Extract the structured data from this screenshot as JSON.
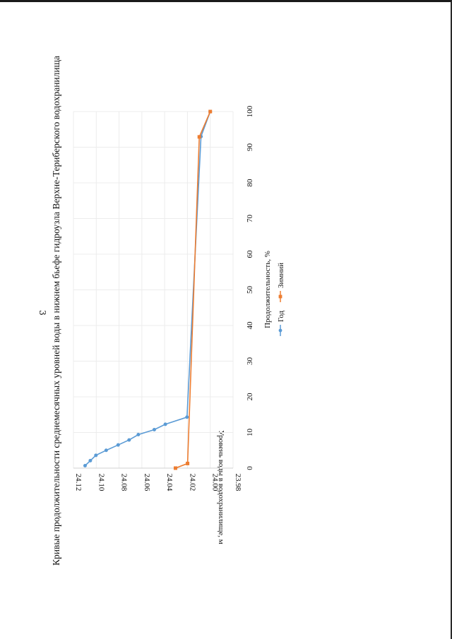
{
  "page": {
    "number": "3"
  },
  "chart_data": {
    "type": "line",
    "title": "Кривые продолжительности среднемесячных уровней воды в нижнем бьефе гидроузла Верхне-Териберского водохранилища",
    "xlabel": "Продолжительность, %",
    "ylabel": "Уровень воды в водохранилище, м",
    "xlim": [
      0,
      100
    ],
    "ylim": [
      23.98,
      24.12
    ],
    "x_ticks": [
      "0",
      "10",
      "20",
      "30",
      "40",
      "50",
      "60",
      "70",
      "80",
      "90",
      "100"
    ],
    "y_ticks": [
      "23.98",
      "24.00",
      "24.02",
      "24.04",
      "24.06",
      "24.08",
      "24.10",
      "24.12"
    ],
    "grid": true,
    "legend_position": "bottom",
    "series": [
      {
        "name": "Год",
        "color": "#5b9bd5",
        "marker": "circle",
        "x": [
          0.7,
          2.1,
          3.6,
          5.0,
          6.5,
          7.9,
          9.4,
          10.8,
          12.3,
          14.3,
          93.0,
          100.0
        ],
        "y": [
          24.1098,
          24.1052,
          24.1003,
          24.0913,
          24.0808,
          24.0712,
          24.0631,
          24.0491,
          24.0394,
          24.0204,
          24.0081,
          24.0
        ]
      },
      {
        "name": "Зимний",
        "color": "#ed7d31",
        "marker": "square",
        "x": [
          0.0,
          1.3,
          92.9,
          100.0
        ],
        "y": [
          24.0305,
          24.0199,
          24.0096,
          24.0
        ]
      }
    ]
  }
}
